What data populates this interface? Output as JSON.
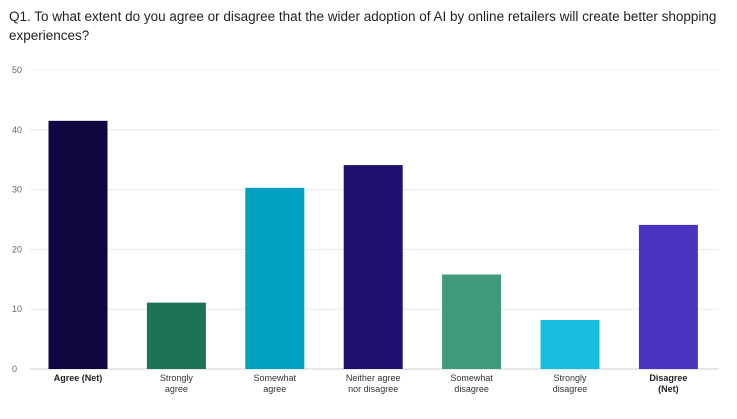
{
  "chart_data": {
    "type": "bar",
    "title": "Q1. To what extent do you agree or disagree that the wider adoption of AI by online retailers will create better shopping experiences?",
    "xlabel": "",
    "ylabel": "",
    "ylim": [
      0,
      50
    ],
    "yticks": [
      "0",
      "10",
      "20",
      "30",
      "40",
      "50"
    ],
    "grid": true,
    "categories": [
      [
        "Agree (Net)"
      ],
      [
        "Strongly",
        "agree"
      ],
      [
        "Somewhat",
        "agree"
      ],
      [
        "Neither agree",
        "nor disagree"
      ],
      [
        "Somewhat",
        "disagree"
      ],
      [
        "Strongly",
        "disagree"
      ],
      [
        "Disagree",
        "(Net)"
      ]
    ],
    "bold_labels": [
      true,
      false,
      false,
      false,
      false,
      false,
      true
    ],
    "values": [
      41.5,
      11.1,
      30.3,
      34.1,
      15.8,
      8.2,
      24.1
    ],
    "colors": [
      "#0f0840",
      "#1c7358",
      "#00a0c0",
      "#1f1170",
      "#3f9b7c",
      "#18bedd",
      "#4d34c0"
    ]
  }
}
